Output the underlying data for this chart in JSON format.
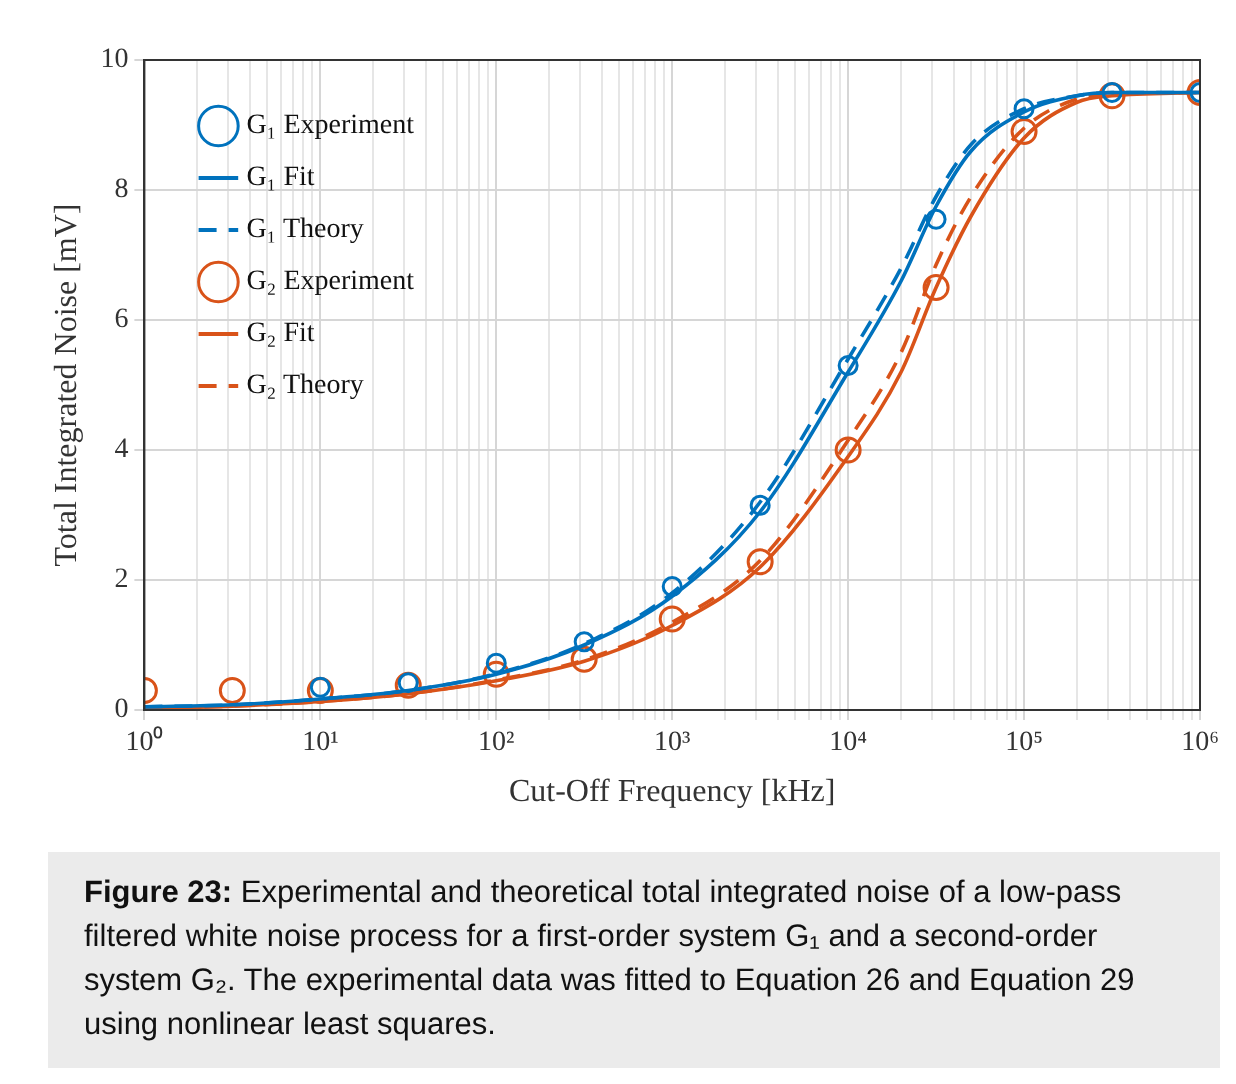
{
  "chart_data": {
    "type": "line",
    "xlabel": "Cut-Off Frequency [kHz]",
    "ylabel": "Total Integrated Noise [mV]",
    "log": "x",
    "grid": true,
    "legend": "top left",
    "xlim": [
      1,
      1000000
    ],
    "ylim": [
      0,
      10
    ],
    "xticks": [
      {
        "value": 1,
        "label": "10⁰"
      },
      {
        "value": 2,
        "label": null
      },
      {
        "value": 3,
        "label": null
      },
      {
        "value": 4,
        "label": null
      },
      {
        "value": 5,
        "label": null
      },
      {
        "value": 6,
        "label": null
      },
      {
        "value": 7,
        "label": null
      },
      {
        "value": 8,
        "label": null
      },
      {
        "value": 9,
        "label": null
      },
      {
        "value": 10,
        "label": "10¹"
      },
      {
        "value": 20,
        "label": null
      },
      {
        "value": 30,
        "label": null
      },
      {
        "value": 40,
        "label": null
      },
      {
        "value": 50,
        "label": null
      },
      {
        "value": 60,
        "label": null
      },
      {
        "value": 70,
        "label": null
      },
      {
        "value": 80,
        "label": null
      },
      {
        "value": 90,
        "label": null
      },
      {
        "value": 100,
        "label": "10²"
      },
      {
        "value": 200,
        "label": null
      },
      {
        "value": 300,
        "label": null
      },
      {
        "value": 400,
        "label": null
      },
      {
        "value": 500,
        "label": null
      },
      {
        "value": 600,
        "label": null
      },
      {
        "value": 700,
        "label": null
      },
      {
        "value": 800,
        "label": null
      },
      {
        "value": 900,
        "label": null
      },
      {
        "value": 1000,
        "label": "10³"
      },
      {
        "value": 2000,
        "label": null
      },
      {
        "value": 3000,
        "label": null
      },
      {
        "value": 4000,
        "label": null
      },
      {
        "value": 5000,
        "label": null
      },
      {
        "value": 6000,
        "label": null
      },
      {
        "value": 7000,
        "label": null
      },
      {
        "value": 8000,
        "label": null
      },
      {
        "value": 9000,
        "label": null
      },
      {
        "value": 10000,
        "label": "10⁴"
      },
      {
        "value": 20000,
        "label": null
      },
      {
        "value": 30000,
        "label": null
      },
      {
        "value": 40000,
        "label": null
      },
      {
        "value": 50000,
        "label": null
      },
      {
        "value": 60000,
        "label": null
      },
      {
        "value": 70000,
        "label": null
      },
      {
        "value": 80000,
        "label": null
      },
      {
        "value": 90000,
        "label": null
      },
      {
        "value": 100000,
        "label": "10⁵"
      },
      {
        "value": 200000,
        "label": null
      },
      {
        "value": 300000,
        "label": null
      },
      {
        "value": 400000,
        "label": null
      },
      {
        "value": 500000,
        "label": null
      },
      {
        "value": 600000,
        "label": null
      },
      {
        "value": 700000,
        "label": null
      },
      {
        "value": 800000,
        "label": null
      },
      {
        "value": 900000,
        "label": null
      },
      {
        "value": 1000000,
        "label": "10⁶"
      }
    ],
    "yticks": [
      0,
      2,
      4,
      6,
      8,
      10
    ],
    "series": [
      {
        "name": "G₁ Experiment",
        "type": "scatter",
        "marker": "circle",
        "color": "#0072bd",
        "x": [
          10,
          31.6,
          100,
          316,
          1000,
          3162,
          10000,
          31623,
          100000,
          316228,
          1000000
        ],
        "values": [
          0.35,
          0.42,
          0.72,
          1.05,
          1.9,
          3.15,
          5.3,
          7.55,
          9.25,
          9.5,
          9.5
        ]
      },
      {
        "name": "G₁ Fit",
        "type": "line",
        "line_style": "solid",
        "marker": "none",
        "color": "#0072bd",
        "x": [
          1,
          3.16,
          10,
          31.6,
          100,
          316,
          1000,
          3162,
          10000,
          20000,
          31623,
          50000,
          100000,
          200000,
          316228,
          1000000
        ],
        "values": [
          0.05,
          0.08,
          0.17,
          0.3,
          0.55,
          1.0,
          1.75,
          3.05,
          5.2,
          6.6,
          7.75,
          8.6,
          9.2,
          9.45,
          9.5,
          9.5
        ]
      },
      {
        "name": "G₁ Theory",
        "type": "line",
        "line_style": "dashed",
        "marker": "none",
        "color": "#0072bd",
        "x": [
          1,
          3.16,
          10,
          31.6,
          100,
          316,
          1000,
          3162,
          10000,
          20000,
          31623,
          50000,
          100000,
          200000,
          316228,
          1000000
        ],
        "values": [
          0.05,
          0.08,
          0.17,
          0.3,
          0.56,
          1.02,
          1.8,
          3.2,
          5.4,
          6.8,
          7.9,
          8.7,
          9.25,
          9.45,
          9.5,
          9.5
        ]
      },
      {
        "name": "G₂ Experiment",
        "type": "scatter",
        "marker": "circle",
        "color": "#d95319",
        "x": [
          1,
          3.16,
          10,
          31.6,
          100,
          316,
          1000,
          3162,
          10000,
          31623,
          100000,
          316228,
          1000000
        ],
        "values": [
          0.3,
          0.3,
          0.3,
          0.38,
          0.55,
          0.78,
          1.4,
          2.28,
          4.0,
          6.5,
          8.9,
          9.45,
          9.5
        ]
      },
      {
        "name": "G₂ Fit",
        "type": "line",
        "line_style": "solid",
        "marker": "none",
        "color": "#d95319",
        "x": [
          1,
          3.16,
          10,
          31.6,
          100,
          316,
          1000,
          3162,
          10000,
          20000,
          31623,
          50000,
          100000,
          200000,
          316228,
          1000000
        ],
        "values": [
          0.03,
          0.06,
          0.13,
          0.25,
          0.45,
          0.75,
          1.3,
          2.2,
          3.9,
          5.2,
          6.5,
          7.6,
          8.8,
          9.35,
          9.45,
          9.5
        ]
      },
      {
        "name": "G₂ Theory",
        "type": "line",
        "line_style": "dashed",
        "marker": "none",
        "color": "#d95319",
        "x": [
          1,
          3.16,
          10,
          31.6,
          100,
          316,
          1000,
          3162,
          10000,
          20000,
          31623,
          50000,
          100000,
          200000,
          316228,
          1000000
        ],
        "values": [
          0.03,
          0.06,
          0.13,
          0.25,
          0.46,
          0.77,
          1.35,
          2.3,
          4.15,
          5.5,
          6.85,
          7.9,
          8.95,
          9.4,
          9.47,
          9.5
        ]
      }
    ],
    "annotations": [
      "Figure 23: Experimental and theoretical total integrated noise of a low-pass filtered white noise process for a first-order system G₁ and a second-order system G₂. The experimental data was fitted to Equation 26 and Equation 29 using nonlinear least squares."
    ]
  }
}
